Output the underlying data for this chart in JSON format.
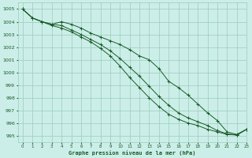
{
  "background_color": "#cceee8",
  "grid_color": "#99ccbb",
  "line_color": "#1a5c2a",
  "xlabel": "Graphe pression niveau de la mer (hPa)",
  "xlim": [
    -0.5,
    23
  ],
  "ylim": [
    994.5,
    1005.5
  ],
  "yticks": [
    995,
    996,
    997,
    998,
    999,
    1000,
    1001,
    1002,
    1003,
    1004,
    1005
  ],
  "xticks": [
    0,
    1,
    2,
    3,
    4,
    5,
    6,
    7,
    8,
    9,
    10,
    11,
    12,
    13,
    14,
    15,
    16,
    17,
    18,
    19,
    20,
    21,
    22,
    23
  ],
  "line1": [
    1005.0,
    1004.3,
    1004.0,
    1003.8,
    1004.0,
    1003.8,
    1003.5,
    1003.1,
    1002.8,
    1002.5,
    1002.2,
    1001.8,
    1001.3,
    1001.0,
    1000.3,
    999.3,
    998.8,
    998.2,
    997.5,
    996.8,
    996.2,
    995.3,
    995.1,
    995.5
  ],
  "line2": [
    1005.0,
    1004.3,
    1004.0,
    1003.8,
    1003.7,
    1003.35,
    1003.0,
    1002.6,
    1002.2,
    1001.7,
    1001.1,
    1000.4,
    999.7,
    998.9,
    998.1,
    997.4,
    996.8,
    996.4,
    996.1,
    995.8,
    995.4,
    995.15,
    995.05,
    995.5
  ],
  "line3": [
    1005.0,
    1004.3,
    1004.0,
    1003.7,
    1003.5,
    1003.2,
    1002.8,
    1002.4,
    1001.9,
    1001.3,
    1000.5,
    999.6,
    998.8,
    998.0,
    997.3,
    996.7,
    996.3,
    996.0,
    995.8,
    995.5,
    995.3,
    995.1,
    995.05,
    995.5
  ]
}
